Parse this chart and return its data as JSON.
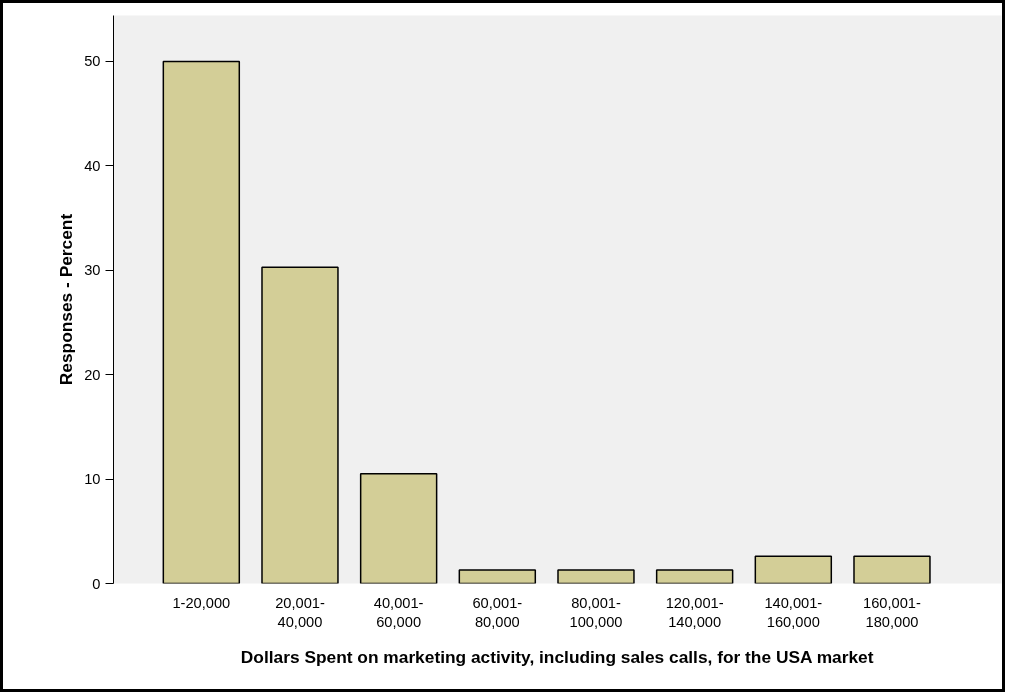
{
  "chart_data": {
    "type": "bar",
    "xlabel": "Dollars Spent on marketing activity, including sales calls, for the USA market",
    "ylabel": "Responses - Percent",
    "categories": [
      "1-20,000",
      "20,001-\n40,000",
      "40,001-\n60,000",
      "60,001-\n80,000",
      "80,001-\n100,000",
      "120,001-\n140,000",
      "140,001-\n160,000",
      "160,001-\n180,000"
    ],
    "values": [
      50.0,
      30.3,
      10.5,
      1.3,
      1.3,
      1.3,
      2.6,
      2.6
    ],
    "color": "#d3ce97",
    "ylim": [
      0,
      54.4
    ],
    "yticks": [
      0,
      10,
      20,
      30,
      40,
      50
    ],
    "grid": false
  }
}
